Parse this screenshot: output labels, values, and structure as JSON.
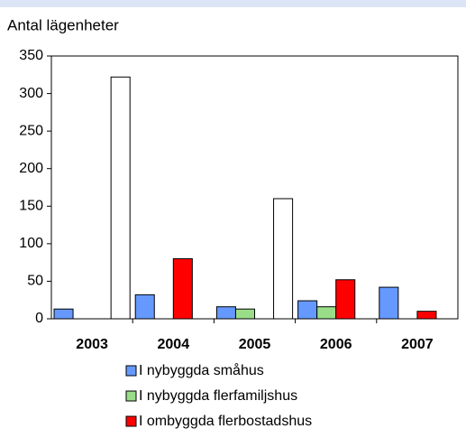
{
  "chart_data": {
    "type": "bar",
    "y_label": "Antal lägenheter",
    "categories": [
      "2003",
      "2004",
      "2005",
      "2006",
      "2007"
    ],
    "series": [
      {
        "name": "I nybyggda småhus",
        "color": "#6699ff",
        "values": [
          13,
          32,
          16,
          24,
          42
        ]
      },
      {
        "name": "I nybyggda flerfamiljshus",
        "color": "#99dd88",
        "values": [
          null,
          null,
          13,
          16,
          null
        ]
      },
      {
        "name": "I ombyggda flerbostadshus",
        "color": "#ff0000",
        "values": [
          null,
          80,
          null,
          52,
          10
        ]
      },
      {
        "color": "#ffffff",
        "values": [
          322,
          null,
          160,
          null,
          null
        ]
      }
    ],
    "ylim": [
      0,
      350
    ],
    "yticks": [
      0,
      50,
      100,
      150,
      200,
      250,
      300,
      350
    ]
  }
}
